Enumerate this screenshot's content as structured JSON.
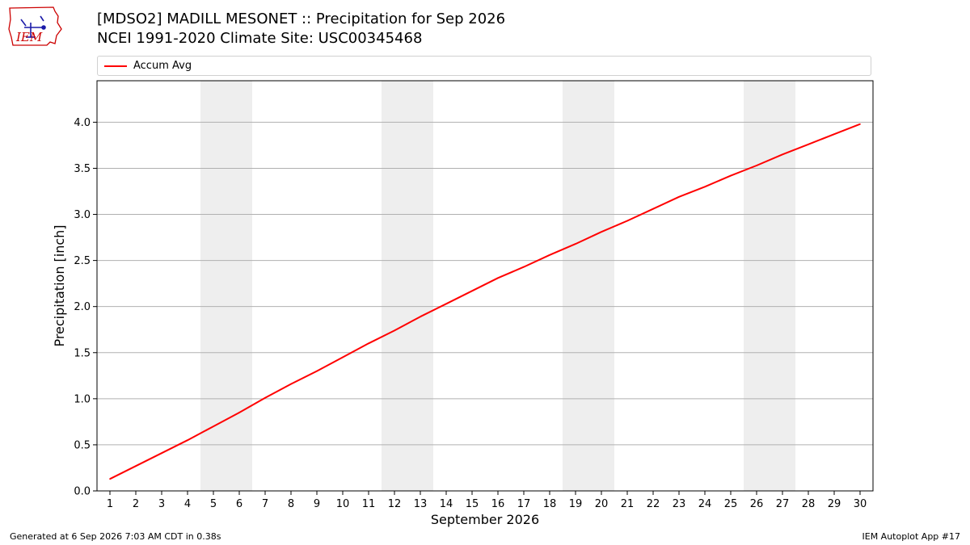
{
  "header": {
    "logo_text": "IEM",
    "title_line_1": "[MDSO2] MADILL MESONET :: Precipitation for Sep 2026",
    "title_line_2": "NCEI 1991-2020 Climate Site: USC00345468"
  },
  "colors": {
    "series": "#ff0000",
    "weekend_band": "#eeeeee",
    "grid": "#b0b0b0",
    "logo": "#cc0000"
  },
  "chart_data": {
    "type": "line",
    "title": "[MDSO2] MADILL MESONET :: Precipitation for Sep 2026",
    "subtitle": "NCEI 1991-2020 Climate Site: USC00345468",
    "xlabel": "September 2026",
    "ylabel": "Precipitation [inch]",
    "x": [
      1,
      2,
      3,
      4,
      5,
      6,
      7,
      8,
      9,
      10,
      11,
      12,
      13,
      14,
      15,
      16,
      17,
      18,
      19,
      20,
      21,
      22,
      23,
      24,
      25,
      26,
      27,
      28,
      29,
      30
    ],
    "xlim": [
      0.5,
      30.5
    ],
    "ylim": [
      0,
      4.45
    ],
    "yticks": [
      "0.0",
      "0.5",
      "1.0",
      "1.5",
      "2.0",
      "2.5",
      "3.0",
      "3.5",
      "4.0"
    ],
    "xticks": [
      "1",
      "2",
      "3",
      "4",
      "5",
      "6",
      "7",
      "8",
      "9",
      "10",
      "11",
      "12",
      "13",
      "14",
      "15",
      "16",
      "17",
      "18",
      "19",
      "20",
      "21",
      "22",
      "23",
      "24",
      "25",
      "26",
      "27",
      "28",
      "29",
      "30"
    ],
    "grid": "horizontal",
    "legend_position": "top",
    "shaded_days": [
      [
        5,
        6
      ],
      [
        12,
        13
      ],
      [
        19,
        20
      ],
      [
        26,
        27
      ]
    ],
    "series": [
      {
        "name": "Accum Avg",
        "values": [
          0.13,
          0.27,
          0.41,
          0.55,
          0.7,
          0.85,
          1.01,
          1.16,
          1.3,
          1.45,
          1.6,
          1.74,
          1.89,
          2.03,
          2.17,
          2.31,
          2.43,
          2.56,
          2.68,
          2.81,
          2.93,
          3.06,
          3.19,
          3.3,
          3.42,
          3.53,
          3.65,
          3.76,
          3.87,
          3.98
        ]
      }
    ]
  },
  "footer": {
    "generated": "Generated at 6 Sep 2026 7:03 AM CDT in 0.38s",
    "app": "IEM Autoplot App #17"
  }
}
